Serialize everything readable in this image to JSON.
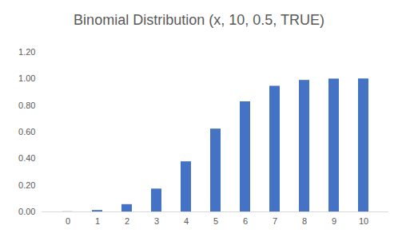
{
  "chart_data": {
    "type": "bar",
    "title": "Binomial Distribution (x, 10, 0.5, TRUE)",
    "categories": [
      "0",
      "1",
      "2",
      "3",
      "4",
      "5",
      "6",
      "7",
      "8",
      "9",
      "10"
    ],
    "values": [
      0.001,
      0.011,
      0.055,
      0.172,
      0.377,
      0.623,
      0.828,
      0.945,
      0.989,
      0.999,
      1.0
    ],
    "color": "#4472c4",
    "ylim": [
      0,
      1.2
    ],
    "yticks": [
      {
        "value": 0,
        "label": "0.00"
      },
      {
        "value": 0.2,
        "label": "0.20"
      },
      {
        "value": 0.4,
        "label": "0.40"
      },
      {
        "value": 0.6,
        "label": "0.60"
      },
      {
        "value": 0.8,
        "label": "0.80"
      },
      {
        "value": 1.0,
        "label": "1.00"
      },
      {
        "value": 1.2,
        "label": "1.20"
      }
    ],
    "grid": false
  }
}
